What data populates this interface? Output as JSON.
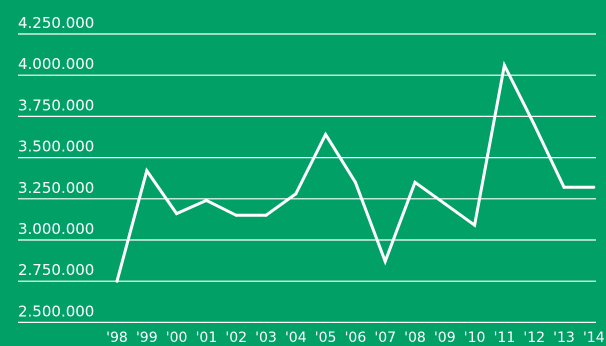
{
  "chart_data": {
    "type": "line",
    "title": "",
    "xlabel": "",
    "ylabel": "",
    "ylim": [
      2500000,
      4250000
    ],
    "grid": true,
    "y_ticks": [
      "4.250.000",
      "4.000.000",
      "3.750.000",
      "3.500.000",
      "3.250.000",
      "3.000.000",
      "2.750.000",
      "2.500.000"
    ],
    "y_tick_values": [
      4250000,
      4000000,
      3750000,
      3500000,
      3250000,
      3000000,
      2750000,
      2500000
    ],
    "categories": [
      "'98",
      "'99",
      "'00",
      "'01",
      "'02",
      "'03",
      "'04",
      "'05",
      "'06",
      "'07",
      "'08",
      "'09",
      "'10",
      "'11",
      "'12",
      "'13",
      "'14"
    ],
    "series": [
      {
        "values": [
          2750000,
          3420000,
          3160000,
          3240000,
          3150000,
          3150000,
          3280000,
          3640000,
          3350000,
          2870000,
          3350000,
          3220000,
          3090000,
          4060000,
          3700000,
          3320000,
          3320000
        ]
      }
    ],
    "colors": {
      "background": "#00a067",
      "line": "#ffffff",
      "grid": "#ffffff",
      "text": "#ffffff"
    }
  }
}
